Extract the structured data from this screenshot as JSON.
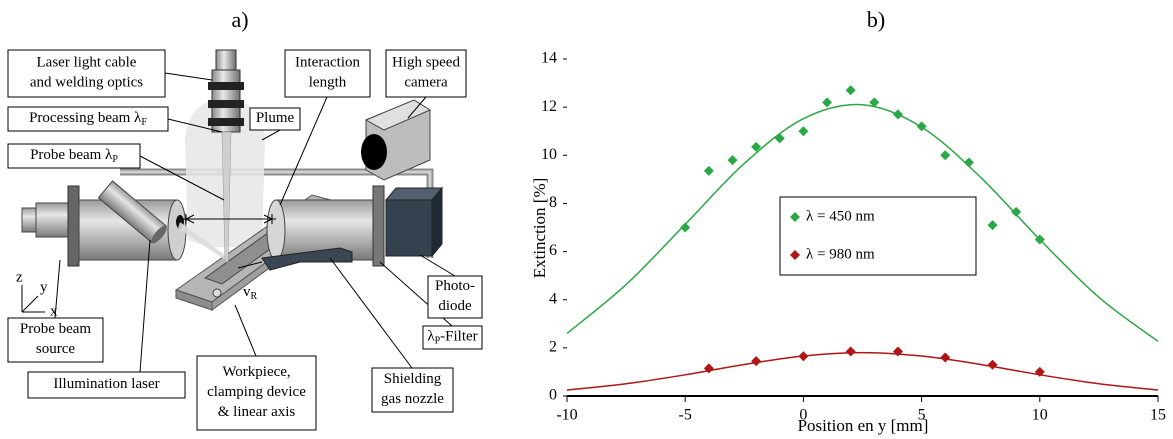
{
  "diagram": {
    "title": "a)",
    "labels": [
      {
        "lines": [
          "Laser light cable",
          "and welding optics"
        ]
      },
      {
        "lines": [
          "Processing beam λ"
        ],
        "sub": "F"
      },
      {
        "lines": [
          "Probe beam λ"
        ],
        "sub": "P"
      },
      {
        "lines": [
          "Interaction",
          "length"
        ]
      },
      {
        "lines": [
          "Plume"
        ]
      },
      {
        "lines": [
          "High speed",
          "camera"
        ]
      },
      {
        "lines": [
          "Photo-",
          "diode"
        ]
      },
      {
        "lines": [
          "λ"
        ],
        "sub": "P",
        "tail": "-Filter"
      },
      {
        "lines": [
          "Shielding",
          "gas nozzle"
        ]
      },
      {
        "lines": [
          "Workpiece,",
          "clamping device",
          "& linear axis"
        ]
      },
      {
        "lines": [
          "Illumination laser"
        ]
      },
      {
        "lines": [
          "Probe beam",
          "source"
        ]
      }
    ],
    "velocity": {
      "text": "v",
      "sub": "R"
    },
    "axes": [
      "z",
      "y",
      "x"
    ]
  },
  "chart_data": {
    "type": "scatter",
    "title": "b)",
    "x_label": "Position en y [mm]",
    "y_label": "Extinction [%]",
    "xlim": [
      -10,
      15
    ],
    "xticks": [
      -10,
      -5,
      0,
      5,
      10,
      15
    ],
    "ylim": [
      0,
      14
    ],
    "yticks": [
      0,
      2,
      4,
      6,
      8,
      10,
      12,
      14
    ],
    "series": [
      {
        "name": "λ = 450 nm",
        "color": "#2aa845",
        "x": [
          -5,
          -4,
          -3,
          -2,
          -1,
          0,
          1,
          2,
          3,
          4,
          5,
          6,
          7,
          8,
          9,
          10
        ],
        "values": [
          7.0,
          9.35,
          9.8,
          10.35,
          10.7,
          11.0,
          12.2,
          12.7,
          12.2,
          11.7,
          11.2,
          10.0,
          9.7,
          7.1,
          7.65,
          6.5
        ],
        "fit": {
          "x": [
            -10,
            -7.5,
            -5,
            -2.5,
            0,
            2.5,
            5,
            7.5,
            10,
            12.5,
            15
          ],
          "values": [
            2.6,
            4.63,
            7.13,
            9.66,
            11.52,
            12.1,
            11.17,
            9.08,
            6.5,
            4.1,
            2.27
          ]
        }
      },
      {
        "name": "λ = 980 nm",
        "color": "#b01515",
        "x": [
          -4,
          -2,
          0,
          2,
          4,
          6,
          8,
          10
        ],
        "values": [
          1.15,
          1.45,
          1.65,
          1.85,
          1.85,
          1.6,
          1.3,
          1.0
        ],
        "fit": {
          "x": [
            -10,
            -7.5,
            -5,
            -2.5,
            0,
            2.5,
            5,
            7.5,
            10,
            12.5,
            15
          ],
          "values": [
            0.25,
            0.51,
            0.88,
            1.31,
            1.66,
            1.8,
            1.66,
            1.31,
            0.88,
            0.51,
            0.25
          ]
        }
      }
    ]
  }
}
